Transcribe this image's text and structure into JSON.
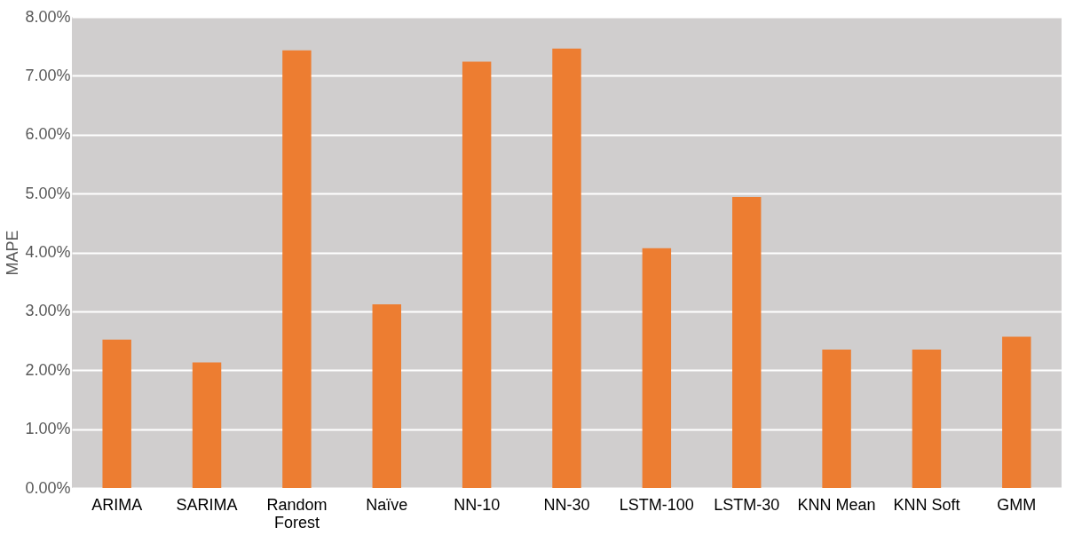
{
  "chart_data": {
    "type": "bar",
    "ylabel": "MAPE",
    "categories": [
      "ARIMA",
      "SARIMA",
      "Random Forest",
      "Naïve",
      "NN-10",
      "NN-30",
      "LSTM-100",
      "LSTM-30",
      "KNN Mean",
      "KNN Soft",
      "GMM"
    ],
    "values": [
      2.52,
      2.13,
      7.43,
      3.12,
      7.24,
      7.46,
      4.07,
      4.94,
      2.35,
      2.35,
      2.57
    ],
    "color": "#ed7d31",
    "ylim": [
      0,
      8
    ],
    "yticks": [
      {
        "value": 0,
        "label": "0.00%"
      },
      {
        "value": 1,
        "label": "1.00%"
      },
      {
        "value": 2,
        "label": "2.00%"
      },
      {
        "value": 3,
        "label": "3.00%"
      },
      {
        "value": 4,
        "label": "4.00%"
      },
      {
        "value": 5,
        "label": "5.00%"
      },
      {
        "value": 6,
        "label": "6.00%"
      },
      {
        "value": 7,
        "label": "7.00%"
      },
      {
        "value": 8,
        "label": "8.00%"
      }
    ],
    "grid": "y"
  }
}
